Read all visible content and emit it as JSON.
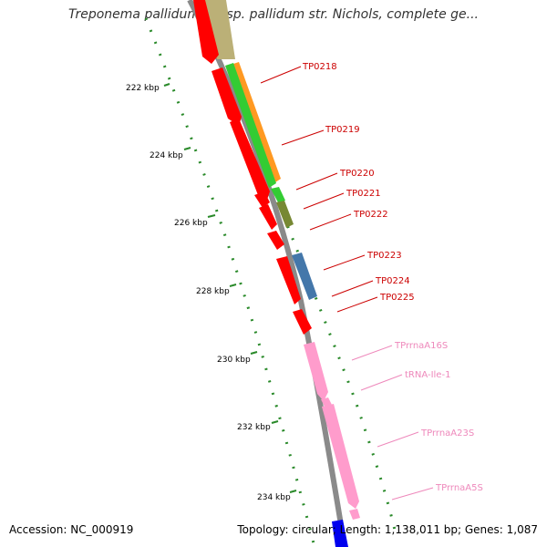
{
  "title": "Treponema pallidum subsp. pallidum str. Nichols, complete ge...",
  "footer": {
    "accession": "Accession: NC_000919",
    "summary": "Topology: circular; Length: 1,138,011 bp; Genes: 1,087"
  },
  "scale_labels": [
    "222 kbp",
    "224 kbp",
    "226 kbp",
    "228 kbp",
    "230 kbp",
    "232 kbp",
    "234 kbp"
  ],
  "genes": [
    {
      "label": "TP0218",
      "color": "#cc0000"
    },
    {
      "label": "TP0219",
      "color": "#cc0000"
    },
    {
      "label": "TP0220",
      "color": "#cc0000"
    },
    {
      "label": "TP0221",
      "color": "#cc0000"
    },
    {
      "label": "TP0222",
      "color": "#cc0000"
    },
    {
      "label": "TP0223",
      "color": "#cc0000"
    },
    {
      "label": "TP0224",
      "color": "#cc0000"
    },
    {
      "label": "TP0225",
      "color": "#cc0000"
    },
    {
      "label": "TPrrnaA16S",
      "color": "#ee88bb"
    },
    {
      "label": "tRNA-Ile-1",
      "color": "#ee88bb"
    },
    {
      "label": "TPrrnaA23S",
      "color": "#ee88bb"
    },
    {
      "label": "TPrrnaA5S",
      "color": "#ee88bb"
    }
  ],
  "colors": {
    "cds": "#ff0000",
    "rrna": "#ff9ccc",
    "trna": "#ff9ccc",
    "backbone": "#888888",
    "gc_dots": "#228822",
    "cog_orange": "#ff9922",
    "cog_green": "#33cc33",
    "cog_olive": "#778833",
    "cog_blue": "#4477aa",
    "cog_khaki": "#bbb077",
    "bottom_blue": "#0000ee"
  }
}
